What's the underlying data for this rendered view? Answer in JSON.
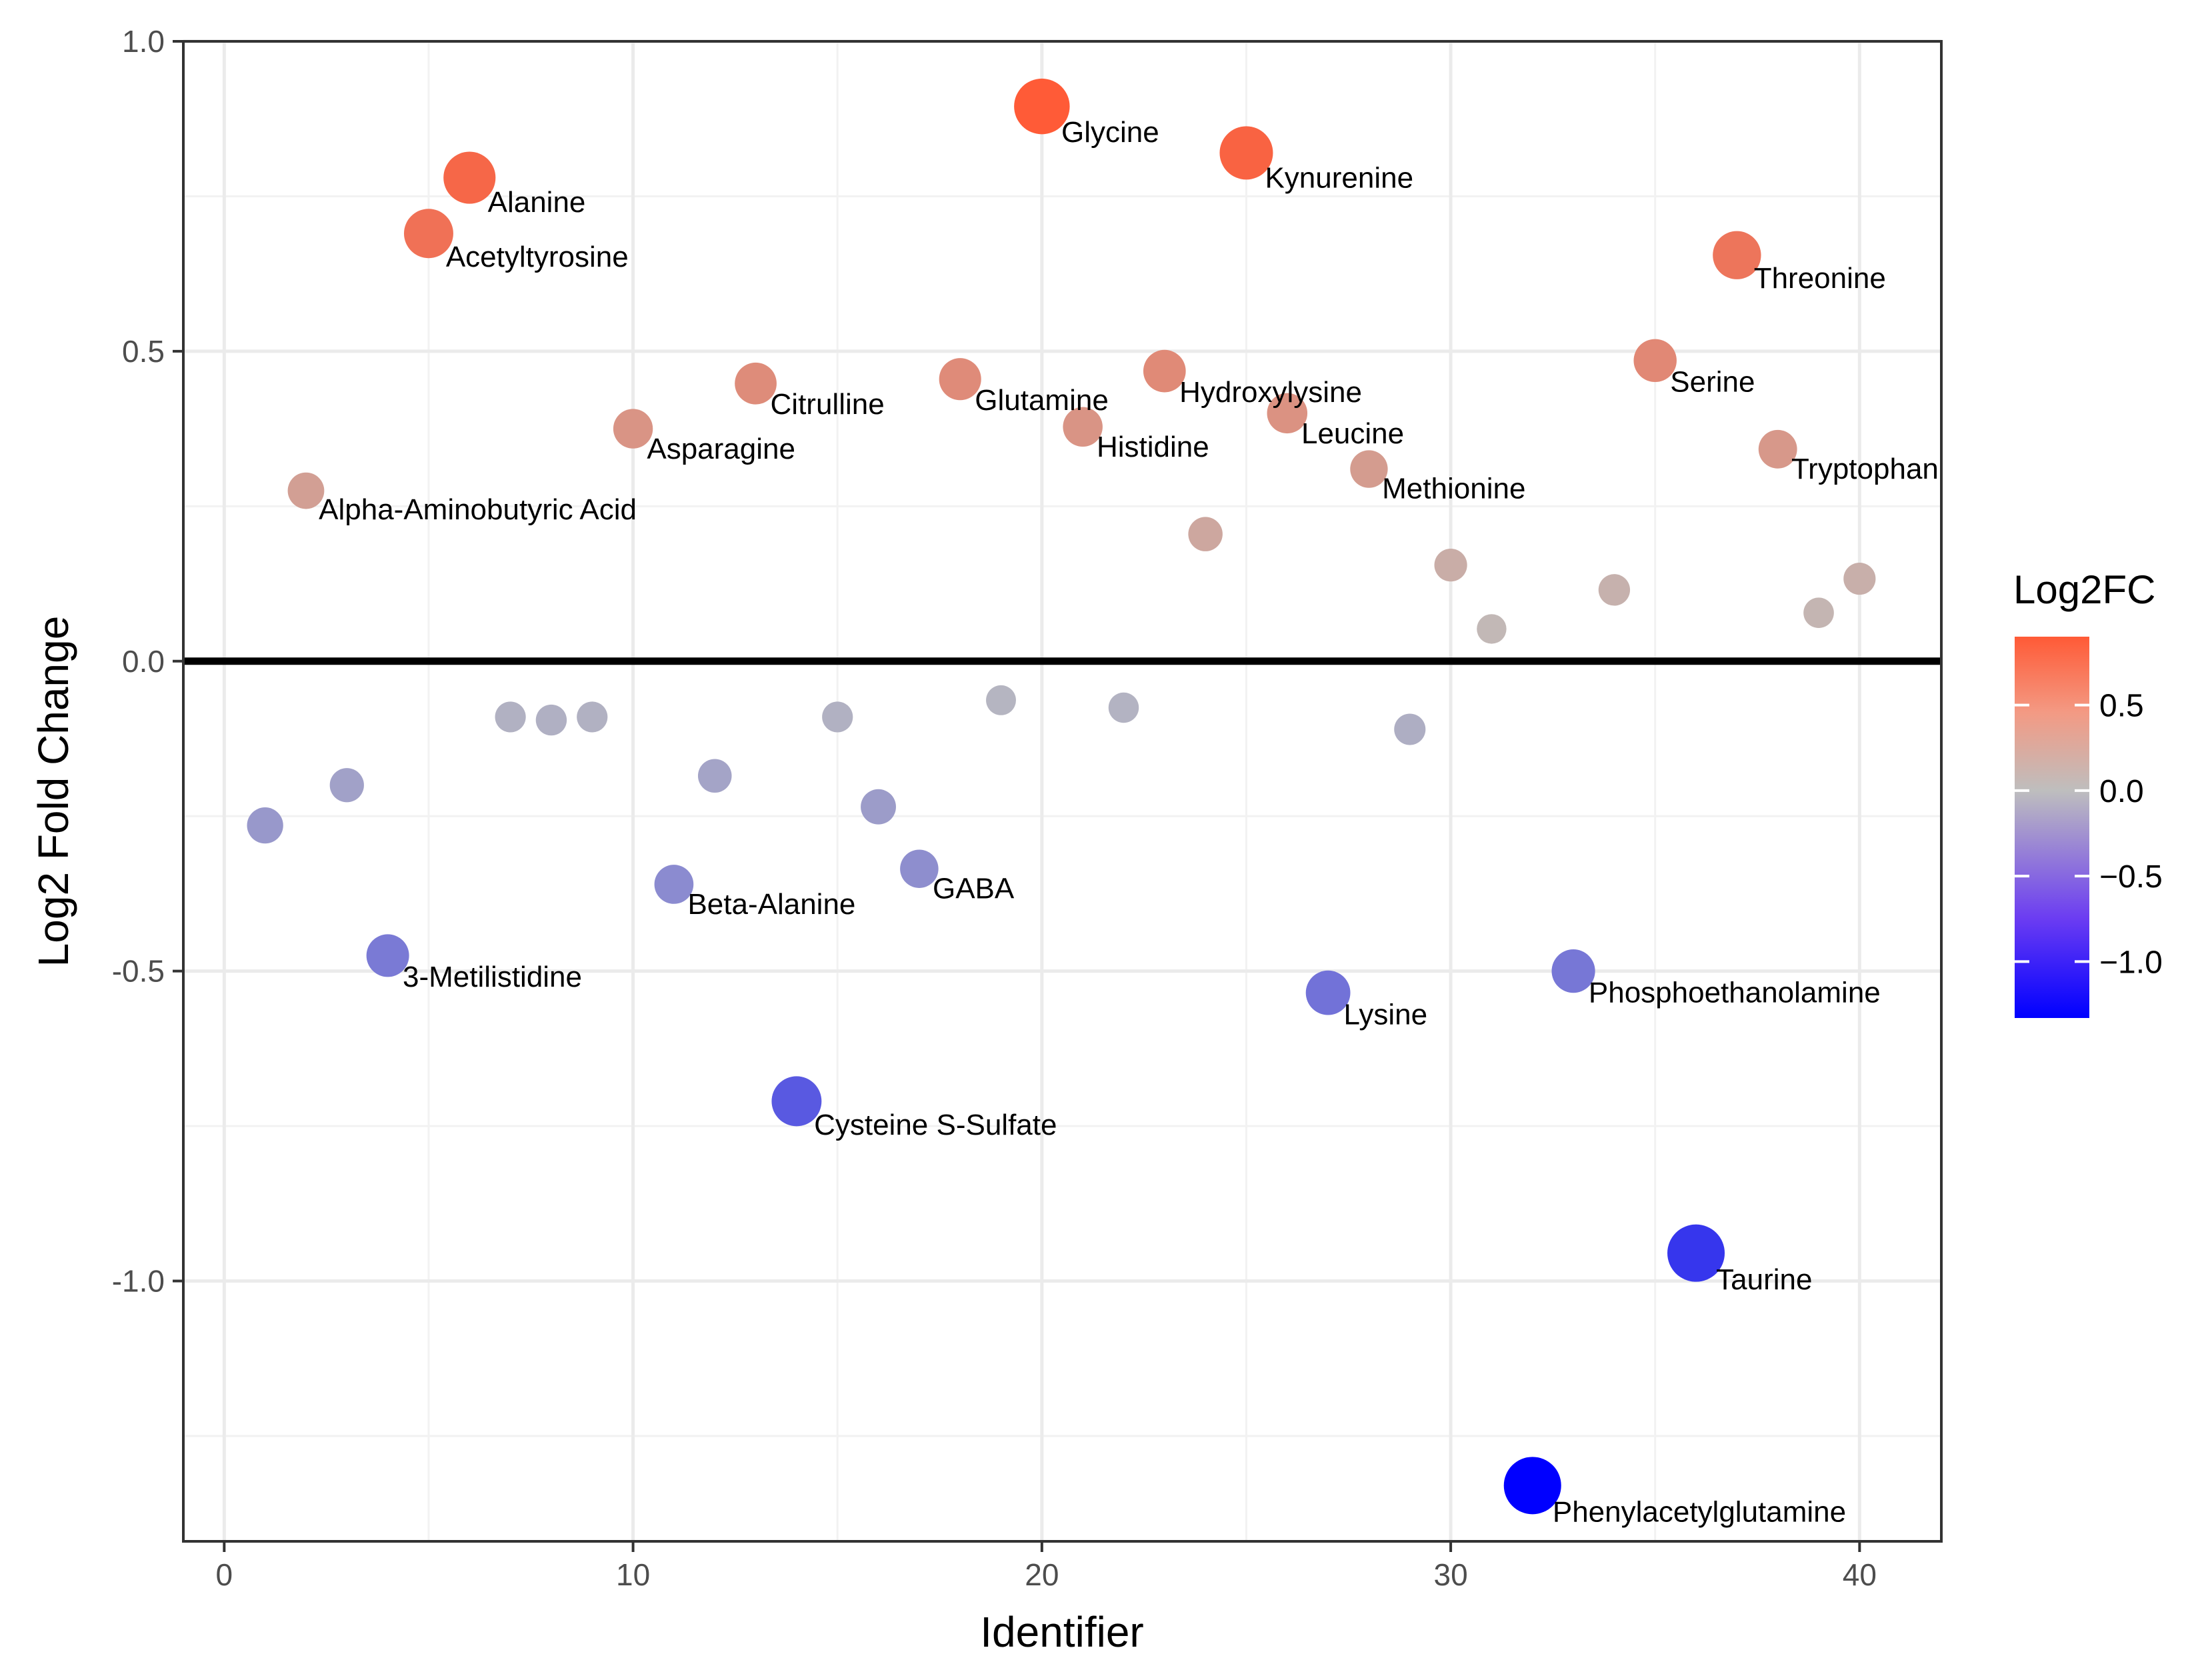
{
  "chart_data": {
    "type": "scatter",
    "title": "",
    "xlabel": "Identifier",
    "ylabel": "Log2 Fold Change",
    "xlim": [
      -1,
      42
    ],
    "ylim": [
      -1.42,
      1.0
    ],
    "xticks": [
      0,
      10,
      20,
      30,
      40
    ],
    "xtick_labels": [
      "0",
      "10",
      "20",
      "30",
      "40"
    ],
    "yticks": [
      1.0,
      0.5,
      0.0,
      -0.5,
      -1.0
    ],
    "ytick_labels": [
      "1.0",
      "0.5",
      "0.0",
      "-0.5",
      "-1.0"
    ],
    "reference_line": 0.0,
    "grid": true,
    "legend": {
      "title": "Log2FC",
      "placement": "right",
      "range": [
        -1.33,
        0.9
      ],
      "ticks": [
        0.5,
        0.0,
        -0.5,
        -1.0
      ],
      "tick_labels": [
        "0.5",
        "0.0",
        "−0.5",
        "−1.0"
      ],
      "color_low": "#0000ff",
      "color_mid": "#bebebe",
      "color_high": "#ff5a36"
    },
    "points": [
      {
        "id": 1,
        "value": -0.265
      },
      {
        "id": 2,
        "value": 0.275,
        "label": "Alpha-Aminobutyric  Acid"
      },
      {
        "id": 3,
        "value": -0.2
      },
      {
        "id": 4,
        "value": -0.475,
        "label": "3-Metilistidine"
      },
      {
        "id": 5,
        "value": 0.69,
        "label": "Acetyltyrosine"
      },
      {
        "id": 6,
        "value": 0.78,
        "label": "Alanine"
      },
      {
        "id": 7,
        "value": -0.09
      },
      {
        "id": 8,
        "value": -0.095
      },
      {
        "id": 9,
        "value": -0.09
      },
      {
        "id": 10,
        "value": 0.375,
        "label": "Asparagine"
      },
      {
        "id": 11,
        "value": -0.36,
        "label": "Beta-Alanine"
      },
      {
        "id": 12,
        "value": -0.185
      },
      {
        "id": 13,
        "value": 0.448,
        "label": "Citrulline"
      },
      {
        "id": 14,
        "value": -0.71,
        "label": "Cysteine S-Sulfate"
      },
      {
        "id": 15,
        "value": -0.09
      },
      {
        "id": 16,
        "value": -0.235
      },
      {
        "id": 17,
        "value": -0.335,
        "label": "GABA"
      },
      {
        "id": 18,
        "value": 0.455,
        "label": "Glutamine"
      },
      {
        "id": 19,
        "value": -0.063
      },
      {
        "id": 20,
        "value": 0.895,
        "label": "Glycine"
      },
      {
        "id": 21,
        "value": 0.378,
        "label": "Histidine"
      },
      {
        "id": 22,
        "value": -0.075
      },
      {
        "id": 23,
        "value": 0.468,
        "label": "Hydroxylysine"
      },
      {
        "id": 24,
        "value": 0.205
      },
      {
        "id": 25,
        "value": 0.82,
        "label": "Kynurenine"
      },
      {
        "id": 26,
        "value": 0.4,
        "label": "Leucine"
      },
      {
        "id": 27,
        "value": -0.535,
        "label": "Lysine"
      },
      {
        "id": 28,
        "value": 0.31,
        "label": "Methionine"
      },
      {
        "id": 29,
        "value": -0.11
      },
      {
        "id": 30,
        "value": 0.155
      },
      {
        "id": 31,
        "value": 0.052
      },
      {
        "id": 32,
        "value": -1.33,
        "label": "Phenylacetylglutamine"
      },
      {
        "id": 33,
        "value": -0.5,
        "label": "Phosphoethanolamine"
      },
      {
        "id": 34,
        "value": 0.115
      },
      {
        "id": 35,
        "value": 0.485,
        "label": "Serine"
      },
      {
        "id": 36,
        "value": -0.955,
        "label": "Taurine"
      },
      {
        "id": 37,
        "value": 0.655,
        "label": "Threonine"
      },
      {
        "id": 38,
        "value": 0.342,
        "label": "Tryptophan"
      },
      {
        "id": 39,
        "value": 0.078
      },
      {
        "id": 40,
        "value": 0.133
      }
    ]
  }
}
